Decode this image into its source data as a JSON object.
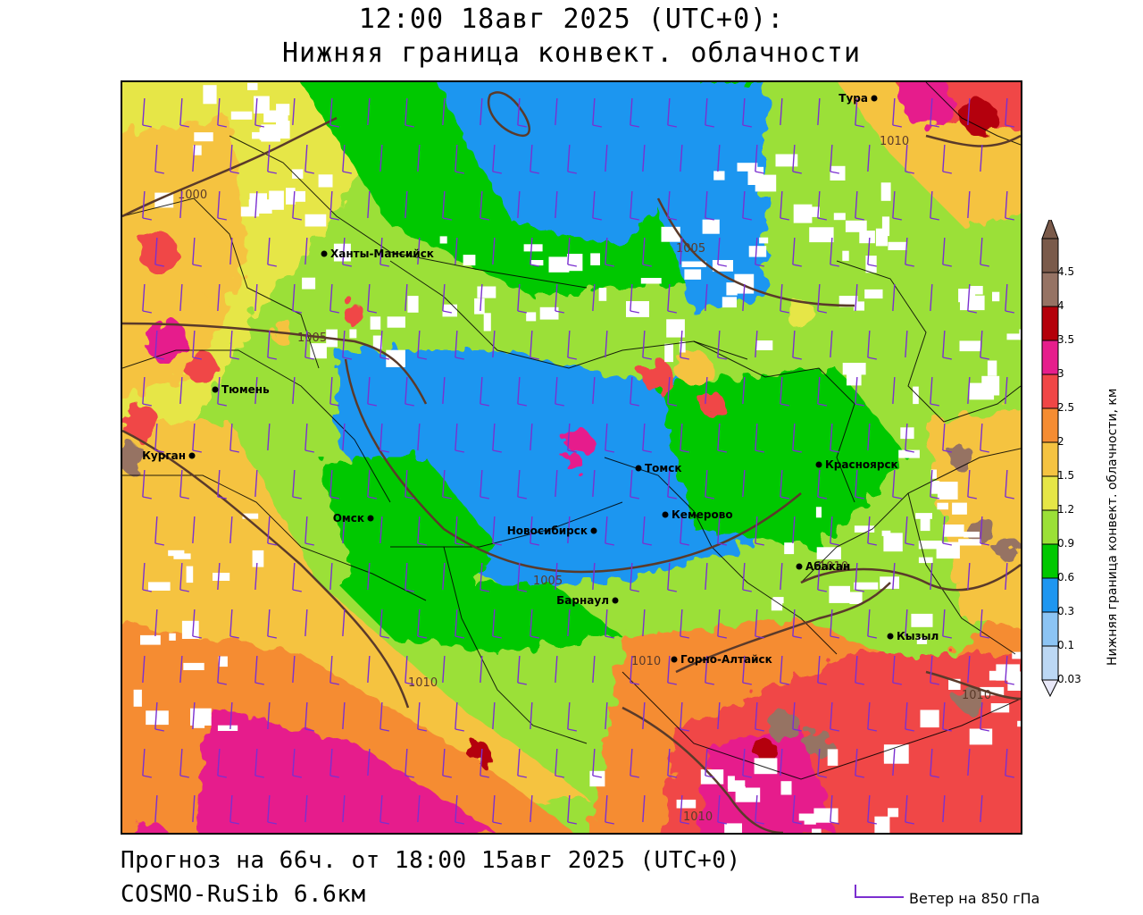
{
  "header": {
    "valid_time": "12:00 18авг 2025 (UTC+0):",
    "parameter": "Нижняя граница конвект. облачности"
  },
  "footer": {
    "forecast": "Прогноз на 66ч. от 18:00 15авг 2025 (UTC+0)",
    "model": "COSMO-RuSib 6.6км"
  },
  "legend": {
    "title": "Нижняя граница конвект. облачности, км",
    "levels": [
      "0.03",
      "0.1",
      "0.3",
      "0.6",
      "0.9",
      "1.2",
      "1.5",
      "2",
      "2.5",
      "3",
      "3.5",
      "4",
      "4.5"
    ],
    "colors": [
      "#e8e8f8",
      "#bcd8f4",
      "#8cc4f4",
      "#1e96f0",
      "#00c800",
      "#9be037",
      "#e6e646",
      "#f5c341",
      "#f58c32",
      "#f04646",
      "#e61e8c",
      "#b4000a",
      "#967364",
      "#7a5a4a"
    ]
  },
  "wind_key": {
    "label": "Ветер на 850 гПа",
    "color": "#7b2fd0"
  },
  "cities": [
    {
      "name": "Тура"
    },
    {
      "name": "Ханты-Мансийск"
    },
    {
      "name": "Тюмень"
    },
    {
      "name": "Курган"
    },
    {
      "name": "Омск"
    },
    {
      "name": "Новосибирск"
    },
    {
      "name": "Томск"
    },
    {
      "name": "Кемерово"
    },
    {
      "name": "Красноярск"
    },
    {
      "name": "Абакан"
    },
    {
      "name": "Барнаул"
    },
    {
      "name": "Горно-Алтайск"
    },
    {
      "name": "Кызыл"
    }
  ],
  "isobars": [
    {
      "value": "1000"
    },
    {
      "value": "1005"
    },
    {
      "value": "1005"
    },
    {
      "value": "1005"
    },
    {
      "value": "1010"
    },
    {
      "value": "1010"
    },
    {
      "value": "1010"
    },
    {
      "value": "1010"
    },
    {
      "value": "1010"
    },
    {
      "value": "1010"
    }
  ]
}
